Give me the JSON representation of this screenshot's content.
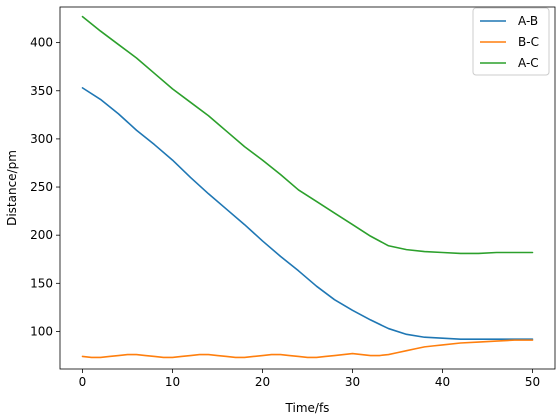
{
  "chart_data": {
    "type": "line",
    "title": "",
    "xlabel": "Time/fs",
    "ylabel": "Distance/pm",
    "xlim": [
      -2.5,
      52.5
    ],
    "ylim": [
      61,
      437
    ],
    "xticks": [
      0,
      10,
      20,
      30,
      40,
      50
    ],
    "yticks": [
      100,
      150,
      200,
      250,
      300,
      350,
      400
    ],
    "grid": false,
    "legend_position": "top-right",
    "series": [
      {
        "name": "A-B",
        "color": "#1f77b4",
        "x": [
          0,
          2,
          4,
          6,
          8,
          10,
          12,
          14,
          16,
          18,
          20,
          22,
          24,
          26,
          28,
          30,
          32,
          34,
          36,
          38,
          40,
          42,
          44,
          46,
          48,
          50
        ],
        "y": [
          353,
          341,
          326,
          309,
          294,
          278,
          260,
          243,
          227,
          211,
          194,
          178,
          163,
          147,
          133,
          122,
          112,
          103,
          97,
          94,
          93,
          92,
          92,
          92,
          92,
          92
        ]
      },
      {
        "name": "B-C",
        "color": "#ff7f0e",
        "x": [
          0,
          1,
          2,
          3,
          4,
          5,
          6,
          7,
          8,
          9,
          10,
          11,
          12,
          13,
          14,
          15,
          16,
          17,
          18,
          19,
          20,
          21,
          22,
          23,
          24,
          25,
          26,
          27,
          28,
          29,
          30,
          31,
          32,
          33,
          34,
          35,
          36,
          37,
          38,
          39,
          40,
          42,
          44,
          46,
          48,
          50
        ],
        "y": [
          74,
          73,
          73,
          74,
          75,
          76,
          76,
          75,
          74,
          73,
          73,
          74,
          75,
          76,
          76,
          75,
          74,
          73,
          73,
          74,
          75,
          76,
          76,
          75,
          74,
          73,
          73,
          74,
          75,
          76,
          77,
          76,
          75,
          75,
          76,
          78,
          80,
          82,
          84,
          85,
          86,
          88,
          89,
          90,
          91,
          91
        ]
      },
      {
        "name": "A-C",
        "color": "#2ca02c",
        "x": [
          0,
          2,
          4,
          6,
          8,
          10,
          12,
          14,
          16,
          18,
          20,
          22,
          24,
          26,
          28,
          30,
          32,
          34,
          36,
          38,
          40,
          42,
          44,
          46,
          48,
          50
        ],
        "y": [
          427,
          412,
          398,
          384,
          368,
          352,
          338,
          324,
          308,
          292,
          278,
          263,
          247,
          235,
          223,
          211,
          199,
          189,
          185,
          183,
          182,
          181,
          181,
          182,
          182,
          182
        ]
      }
    ]
  }
}
